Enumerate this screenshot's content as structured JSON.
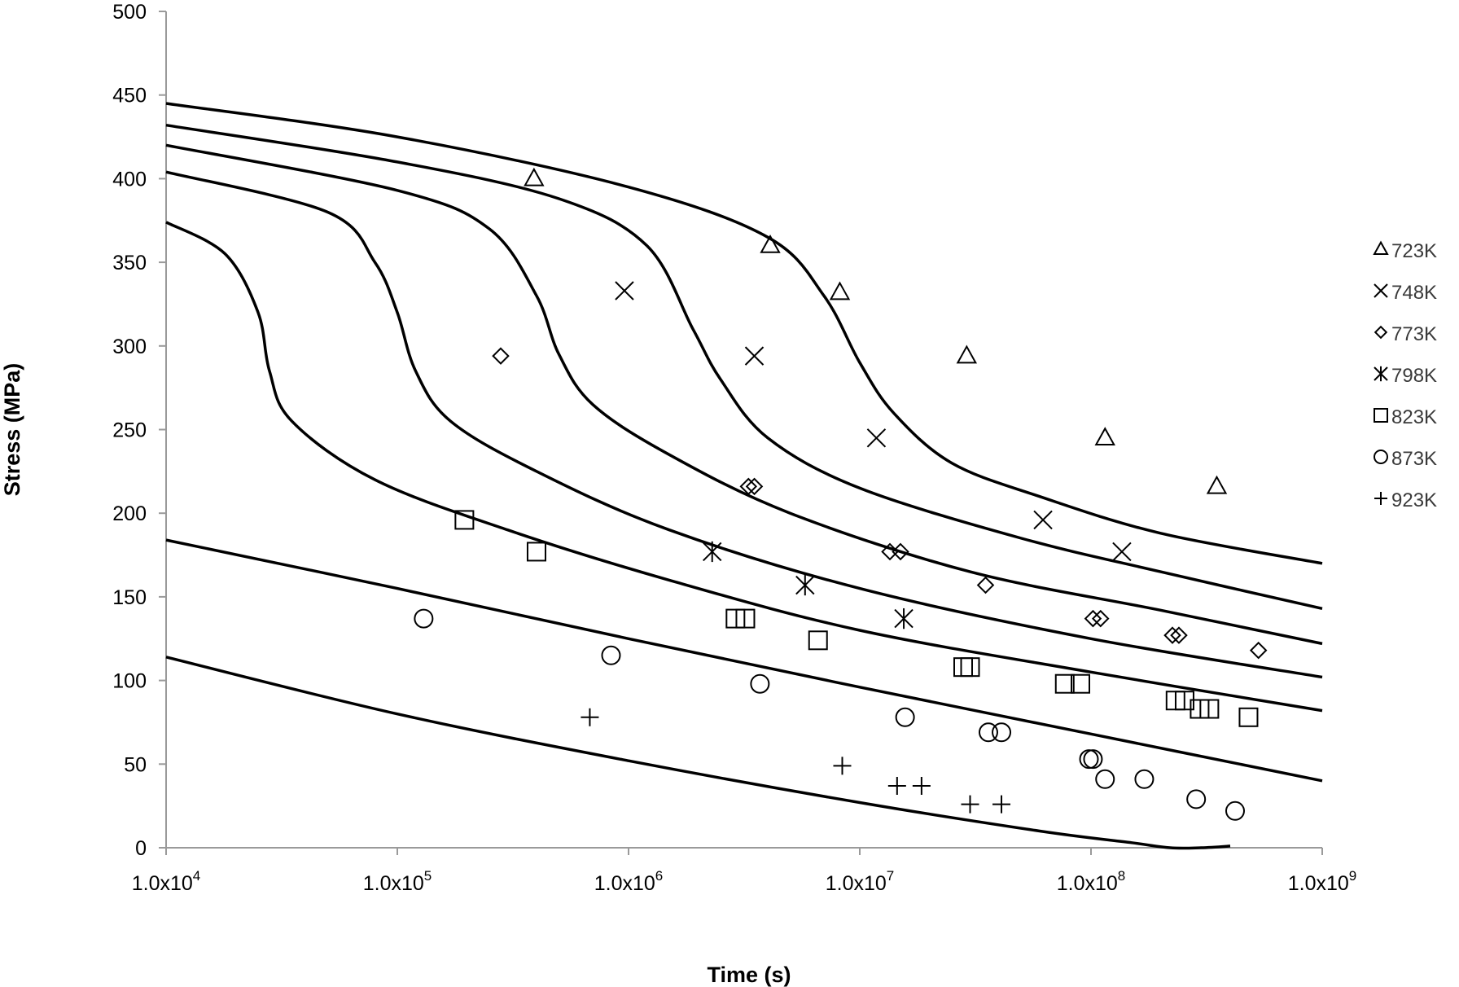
{
  "chart_data": {
    "type": "scatter",
    "title": "",
    "xlabel": "Time (s)",
    "ylabel": "Stress (MPa)",
    "xscale": "log",
    "xlim": [
      10000,
      1000000000
    ],
    "ylim": [
      0,
      500
    ],
    "xticks": [
      {
        "value": 10000,
        "mant": "1.0x10",
        "exp": "4"
      },
      {
        "value": 100000,
        "mant": "1.0x10",
        "exp": "5"
      },
      {
        "value": 1000000,
        "mant": "1.0x10",
        "exp": "6"
      },
      {
        "value": 10000000,
        "mant": "1.0x10",
        "exp": "7"
      },
      {
        "value": 100000000,
        "mant": "1.0x10",
        "exp": "8"
      },
      {
        "value": 1000000000,
        "mant": "1.0x10",
        "exp": "9"
      }
    ],
    "yticks": [
      "0",
      "50",
      "100",
      "150",
      "200",
      "250",
      "300",
      "350",
      "400",
      "450",
      "500"
    ],
    "grid": false,
    "legend_position": "right",
    "series": [
      {
        "name": "723K",
        "marker": "triangle",
        "points": [
          [
            390000,
            400
          ],
          [
            4100000,
            360
          ],
          [
            8200000,
            332
          ],
          [
            29000000,
            294
          ],
          [
            115000000,
            245
          ],
          [
            350000000,
            216
          ]
        ]
      },
      {
        "name": "748K",
        "marker": "x",
        "points": [
          [
            960000,
            333
          ],
          [
            3500000,
            294
          ],
          [
            11800000,
            245
          ],
          [
            62000000,
            196
          ],
          [
            136000000,
            177
          ]
        ]
      },
      {
        "name": "773K",
        "marker": "diamond",
        "points": [
          [
            280000,
            294
          ],
          [
            3300000,
            216
          ],
          [
            3500000,
            216
          ],
          [
            13500000,
            177
          ],
          [
            15000000,
            177
          ],
          [
            35000000,
            157
          ],
          [
            102000000,
            137
          ],
          [
            110000000,
            137
          ],
          [
            225000000,
            127
          ],
          [
            240000000,
            127
          ],
          [
            530000000,
            118
          ]
        ]
      },
      {
        "name": "798K",
        "marker": "asterisk",
        "points": [
          [
            2300000,
            177
          ],
          [
            5800000,
            157
          ],
          [
            15500000,
            137
          ]
        ]
      },
      {
        "name": "823K",
        "marker": "square",
        "points": [
          [
            195000,
            196
          ],
          [
            400000,
            177
          ],
          [
            2900000,
            137
          ],
          [
            3200000,
            137
          ],
          [
            6600000,
            124
          ],
          [
            28000000,
            108
          ],
          [
            30000000,
            108
          ],
          [
            77000000,
            98
          ],
          [
            90000000,
            98
          ],
          [
            232000000,
            88
          ],
          [
            254000000,
            88
          ],
          [
            295000000,
            83
          ],
          [
            325000000,
            83
          ],
          [
            480000000,
            78
          ]
        ]
      },
      {
        "name": "873K",
        "marker": "circle",
        "points": [
          [
            130000,
            137
          ],
          [
            840000,
            115
          ],
          [
            3700000,
            98
          ],
          [
            15700000,
            78
          ],
          [
            36000000,
            69
          ],
          [
            41000000,
            69
          ],
          [
            98000000,
            53
          ],
          [
            102000000,
            53
          ],
          [
            115000000,
            41
          ],
          [
            170000000,
            41
          ],
          [
            285000000,
            29
          ],
          [
            420000000,
            22
          ]
        ]
      },
      {
        "name": "923K",
        "marker": "plus",
        "points": [
          [
            680000,
            78
          ],
          [
            8400000,
            49
          ],
          [
            14500000,
            37
          ],
          [
            18500000,
            37
          ],
          [
            30000000,
            26
          ],
          [
            41000000,
            26
          ]
        ]
      }
    ],
    "model_curves": [
      {
        "points": [
          [
            10000,
            445
          ],
          [
            100000,
            425
          ],
          [
            1000000,
            395
          ],
          [
            4000000,
            365
          ],
          [
            7000000,
            330
          ],
          [
            10000000,
            290
          ],
          [
            14000000,
            260
          ],
          [
            25000000,
            230
          ],
          [
            60000000,
            210
          ],
          [
            200000000,
            188
          ],
          [
            1000000000,
            170
          ]
        ]
      },
      {
        "points": [
          [
            10000,
            432
          ],
          [
            100000,
            410
          ],
          [
            500000,
            388
          ],
          [
            1200000,
            360
          ],
          [
            1900000,
            310
          ],
          [
            2500000,
            280
          ],
          [
            4000000,
            245
          ],
          [
            10000000,
            215
          ],
          [
            50000000,
            185
          ],
          [
            200000000,
            165
          ],
          [
            1000000000,
            143
          ]
        ]
      },
      {
        "points": [
          [
            10000,
            420
          ],
          [
            100000,
            393
          ],
          [
            250000,
            370
          ],
          [
            400000,
            330
          ],
          [
            500000,
            295
          ],
          [
            700000,
            265
          ],
          [
            1500000,
            235
          ],
          [
            5000000,
            200
          ],
          [
            30000000,
            165
          ],
          [
            200000000,
            142
          ],
          [
            1000000000,
            122
          ]
        ]
      },
      {
        "points": [
          [
            10000,
            404
          ],
          [
            50000,
            380
          ],
          [
            80000,
            350
          ],
          [
            100000,
            320
          ],
          [
            120000,
            285
          ],
          [
            170000,
            255
          ],
          [
            400000,
            225
          ],
          [
            1500000,
            190
          ],
          [
            10000000,
            155
          ],
          [
            100000000,
            125
          ],
          [
            1000000000,
            102
          ]
        ]
      },
      {
        "points": [
          [
            10000,
            374
          ],
          [
            18000,
            355
          ],
          [
            25000,
            320
          ],
          [
            28000,
            285
          ],
          [
            35000,
            255
          ],
          [
            80000,
            220
          ],
          [
            300000,
            190
          ],
          [
            1500000,
            160
          ],
          [
            10000000,
            130
          ],
          [
            100000000,
            105
          ],
          [
            1000000000,
            82
          ]
        ]
      },
      {
        "points": [
          [
            10000,
            184
          ],
          [
            100000,
            155
          ],
          [
            1000000,
            125
          ],
          [
            10000000,
            96
          ],
          [
            100000000,
            68
          ],
          [
            1000000000,
            40
          ]
        ]
      },
      {
        "points": [
          [
            10000,
            114
          ],
          [
            100000,
            80
          ],
          [
            1000000,
            52
          ],
          [
            10000000,
            27
          ],
          [
            60000000,
            10
          ],
          [
            150000000,
            3
          ],
          [
            220000000,
            0
          ],
          [
            300000000,
            0
          ],
          [
            400000000,
            1
          ]
        ]
      }
    ]
  }
}
